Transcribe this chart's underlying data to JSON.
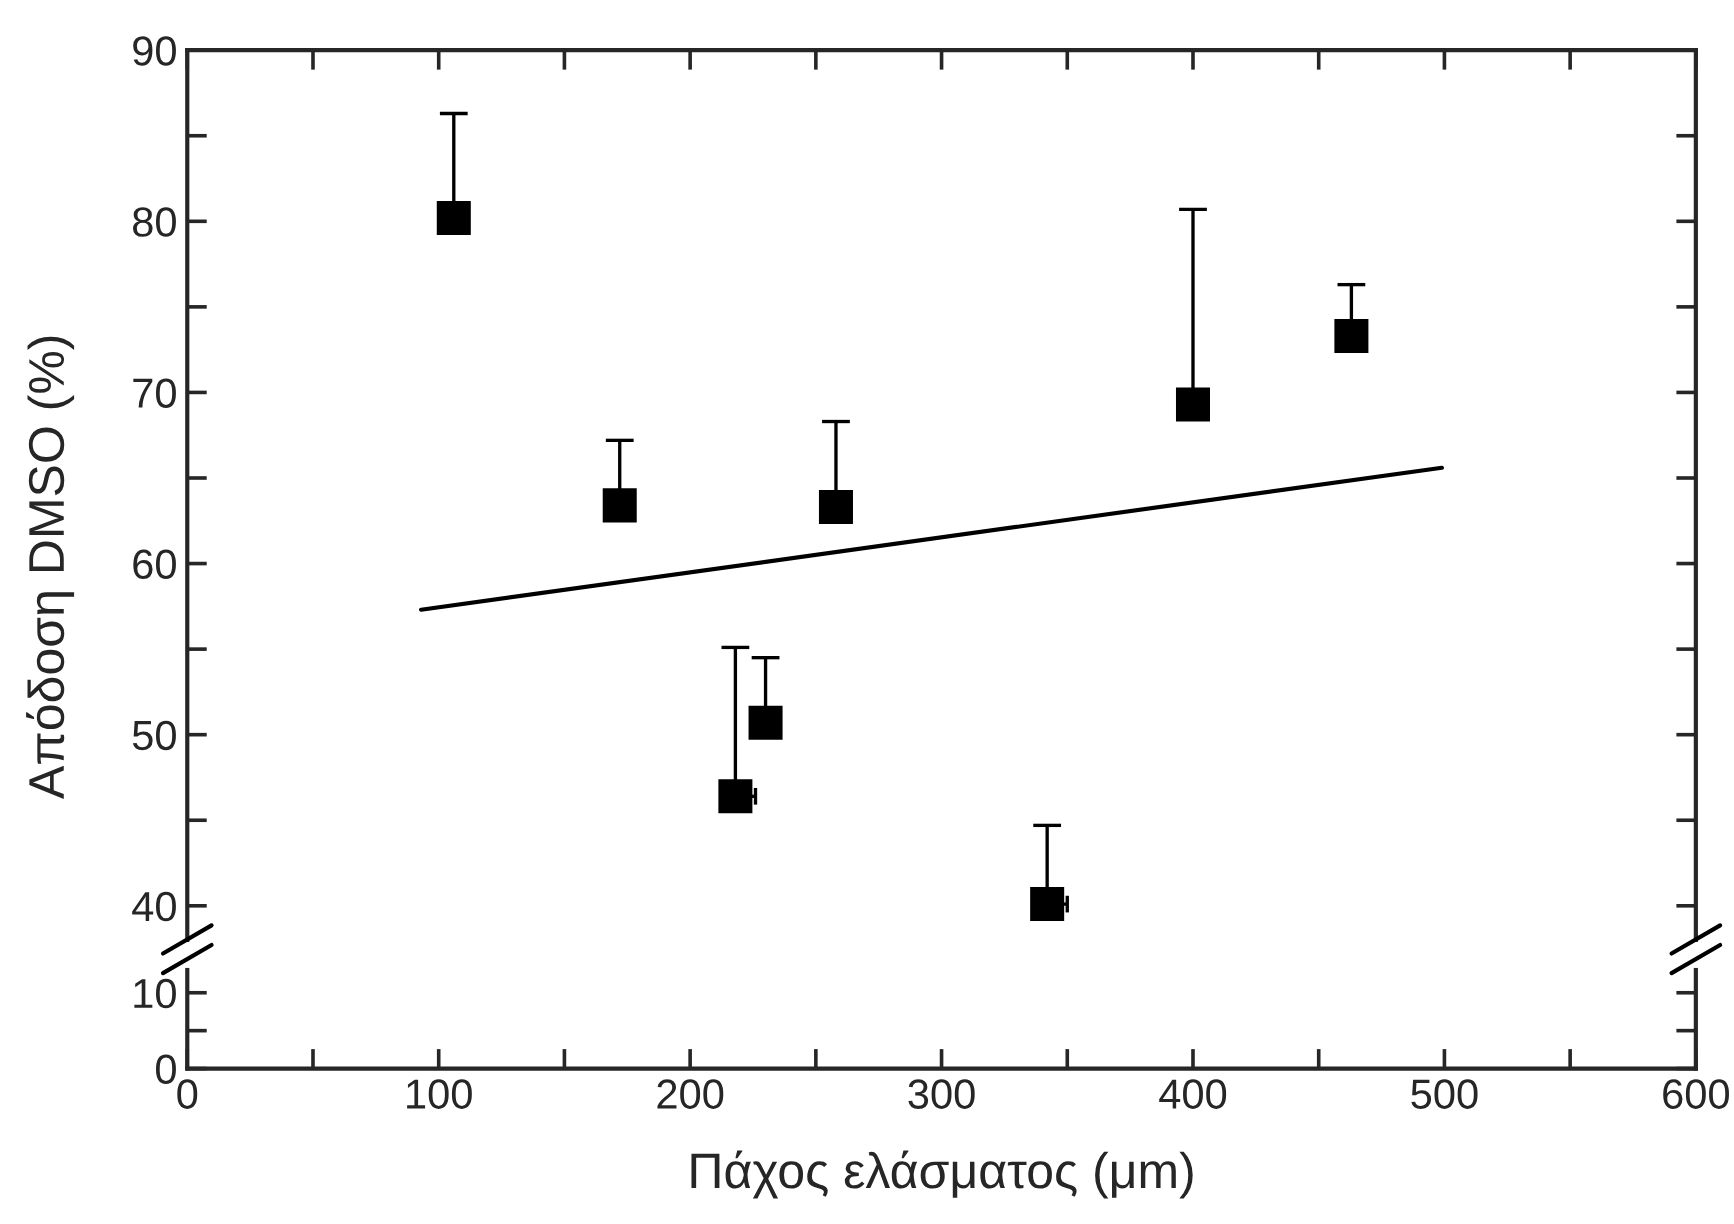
{
  "chart_data": [
    {
      "type": "scatter",
      "ylabel": "Απόδοση DMSO (%)",
      "xlim": [
        0,
        600
      ],
      "xticks": [
        0,
        {
          "value": 50,
          "label": null
        },
        100,
        {
          "value": 150,
          "label": null
        },
        200,
        {
          "value": 250,
          "label": null
        },
        300,
        {
          "value": 350,
          "label": null
        },
        400,
        {
          "value": 450,
          "label": null
        },
        500,
        {
          "value": 550,
          "label": null
        },
        600
      ],
      "ylim": [
        38,
        90
      ],
      "yticks": [
        40,
        {
          "value": 45,
          "label": null
        },
        50,
        {
          "value": 55,
          "label": null
        },
        60,
        {
          "value": 65,
          "label": null
        },
        70,
        {
          "value": 75,
          "label": null
        },
        80,
        {
          "value": 85,
          "label": null
        },
        90
      ],
      "tick_labels": "y",
      "grid": false,
      "legend": false,
      "marker": "square",
      "series": [
        {
          "color": "#000000",
          "x": [
            106,
            172,
            218,
            230,
            258,
            342,
            400,
            463
          ],
          "values": [
            80.2,
            63.4,
            46.4,
            50.7,
            63.3,
            40.1,
            69.3,
            73.3
          ],
          "errors": [
            [
              80.2,
              86.3
            ],
            [
              63.4,
              67.2
            ],
            [
              46.4,
              55.1
            ],
            [
              50.7,
              54.5
            ],
            [
              63.3,
              68.3
            ],
            [
              40.1,
              44.7
            ],
            [
              69.3,
              80.7
            ],
            [
              73.3,
              76.3
            ]
          ],
          "xerrors": [
            null,
            null,
            [
              218,
              226
            ],
            null,
            null,
            [
              342,
              350
            ],
            null,
            null
          ]
        },
        {
          "type": "line",
          "color": "#000000",
          "line_style": "solid",
          "marker": "none",
          "x": [
            93,
            499
          ],
          "values": [
            57.3,
            65.6
          ]
        }
      ]
    },
    {
      "type": "scatter",
      "xlabel": "Πάχος ελάσματος (μm)",
      "xlim": [
        0,
        600
      ],
      "xticks": [
        0,
        {
          "value": 50,
          "label": null
        },
        100,
        {
          "value": 150,
          "label": null
        },
        200,
        {
          "value": 250,
          "label": null
        },
        300,
        {
          "value": 350,
          "label": null
        },
        400,
        {
          "value": 450,
          "label": null
        },
        500,
        {
          "value": 550,
          "label": null
        },
        600
      ],
      "ylim": [
        0,
        13
      ],
      "yticks": [
        0,
        {
          "value": 5,
          "label": null
        },
        10
      ],
      "grid": false,
      "legend": false
    }
  ]
}
